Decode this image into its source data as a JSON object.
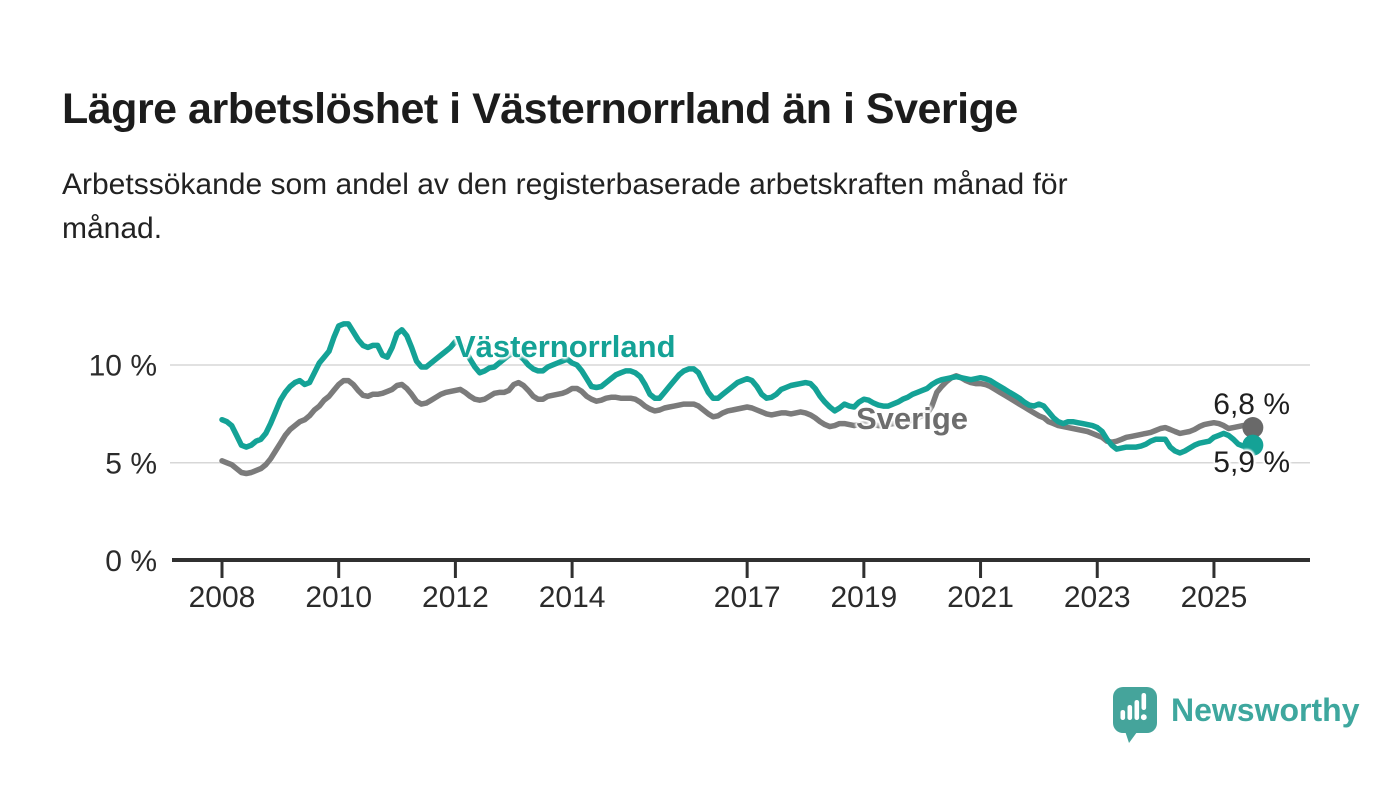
{
  "header": {
    "title": "Lägre arbetslöshet i Västernorrland än i Sverige",
    "subtitle_lines": [
      "Arbetssökande som andel av den registerbaserade arbetskraften månad för",
      "månad."
    ]
  },
  "chart_data": {
    "type": "line",
    "title": "",
    "xlabel": "",
    "ylabel": "",
    "unit": "%",
    "x_monthly_start": "2008-01",
    "x_monthly_end": "2025-09",
    "ylim": [
      0,
      12.8
    ],
    "grid": "horizontal",
    "y_ticks": [
      {
        "value": 0,
        "label": "0 %"
      },
      {
        "value": 5,
        "label": "5 %"
      },
      {
        "value": 10,
        "label": "10 %"
      }
    ],
    "x_ticks": [
      {
        "year": 2008,
        "label": "2008"
      },
      {
        "year": 2010,
        "label": "2010"
      },
      {
        "year": 2012,
        "label": "2012"
      },
      {
        "year": 2014,
        "label": "2014"
      },
      {
        "year": 2017,
        "label": "2017"
      },
      {
        "year": 2019,
        "label": "2019"
      },
      {
        "year": 2021,
        "label": "2021"
      },
      {
        "year": 2023,
        "label": "2023"
      },
      {
        "year": 2025,
        "label": "2025"
      }
    ],
    "series": [
      {
        "name": "Västernorrland",
        "color": "#14a296",
        "dot_color": "#14a296",
        "end_label": "5,9 %",
        "end_value": 5.9,
        "values": [
          7.2,
          7.1,
          6.9,
          6.4,
          5.9,
          5.8,
          5.9,
          6.1,
          6.2,
          6.5,
          7.0,
          7.6,
          8.2,
          8.6,
          8.9,
          9.1,
          9.2,
          9.0,
          9.1,
          9.6,
          10.1,
          10.4,
          10.7,
          11.4,
          12.0,
          12.1,
          12.1,
          11.7,
          11.3,
          11.0,
          10.9,
          11.0,
          11.0,
          10.5,
          10.4,
          10.9,
          11.6,
          11.8,
          11.5,
          10.9,
          10.2,
          9.9,
          9.9,
          10.1,
          10.3,
          10.5,
          10.7,
          10.9,
          11.2,
          11.1,
          10.8,
          10.3,
          9.9,
          9.6,
          9.7,
          9.85,
          9.9,
          10.1,
          10.3,
          10.5,
          10.6,
          10.5,
          10.3,
          10.0,
          9.8,
          9.7,
          9.7,
          9.9,
          10.0,
          10.1,
          10.2,
          10.3,
          10.1,
          10.0,
          9.7,
          9.3,
          8.9,
          8.85,
          8.9,
          9.1,
          9.3,
          9.5,
          9.6,
          9.7,
          9.7,
          9.6,
          9.4,
          9.0,
          8.5,
          8.3,
          8.3,
          8.6,
          8.9,
          9.2,
          9.5,
          9.7,
          9.8,
          9.8,
          9.6,
          9.1,
          8.6,
          8.3,
          8.3,
          8.5,
          8.7,
          8.9,
          9.1,
          9.2,
          9.3,
          9.2,
          8.9,
          8.5,
          8.3,
          8.35,
          8.5,
          8.75,
          8.85,
          8.95,
          9.0,
          9.05,
          9.1,
          9.05,
          8.8,
          8.4,
          8.1,
          7.85,
          7.65,
          7.8,
          8.0,
          7.9,
          7.85,
          8.1,
          8.25,
          8.2,
          8.05,
          7.95,
          7.9,
          7.9,
          8.0,
          8.1,
          8.25,
          8.35,
          8.5,
          8.6,
          8.7,
          8.8,
          9.0,
          9.15,
          9.25,
          9.3,
          9.35,
          9.4,
          9.35,
          9.3,
          9.25,
          9.3,
          9.35,
          9.3,
          9.2,
          9.05,
          8.9,
          8.75,
          8.6,
          8.45,
          8.3,
          8.1,
          7.95,
          7.9,
          8.0,
          7.9,
          7.6,
          7.3,
          7.1,
          7.0,
          7.1,
          7.1,
          7.05,
          7.0,
          6.95,
          6.9,
          6.8,
          6.6,
          6.2,
          5.9,
          5.7,
          5.75,
          5.8,
          5.8,
          5.8,
          5.85,
          5.95,
          6.1,
          6.2,
          6.2,
          6.2,
          5.8,
          5.6,
          5.5,
          5.6,
          5.75,
          5.9,
          6.0,
          6.05,
          6.1,
          6.3,
          6.4,
          6.5,
          6.4,
          6.2,
          5.95,
          5.85,
          6.0,
          5.9
        ]
      },
      {
        "name": "Sverige",
        "color": "#7b7b7b",
        "dot_color": "#696969",
        "end_label": "6,8 %",
        "end_value": 6.8,
        "values": [
          5.1,
          5.0,
          4.9,
          4.7,
          4.5,
          4.45,
          4.5,
          4.6,
          4.7,
          4.9,
          5.2,
          5.6,
          6.0,
          6.4,
          6.7,
          6.9,
          7.1,
          7.2,
          7.4,
          7.7,
          7.9,
          8.2,
          8.4,
          8.7,
          9.0,
          9.2,
          9.2,
          9.0,
          8.7,
          8.45,
          8.4,
          8.5,
          8.5,
          8.55,
          8.65,
          8.75,
          8.95,
          9.0,
          8.8,
          8.5,
          8.15,
          8.0,
          8.05,
          8.2,
          8.35,
          8.5,
          8.6,
          8.65,
          8.7,
          8.75,
          8.6,
          8.4,
          8.25,
          8.2,
          8.25,
          8.4,
          8.55,
          8.6,
          8.6,
          8.7,
          9.0,
          9.1,
          8.95,
          8.7,
          8.4,
          8.25,
          8.25,
          8.4,
          8.45,
          8.5,
          8.55,
          8.65,
          8.8,
          8.8,
          8.65,
          8.4,
          8.25,
          8.15,
          8.2,
          8.3,
          8.35,
          8.35,
          8.3,
          8.3,
          8.3,
          8.25,
          8.1,
          7.9,
          7.75,
          7.65,
          7.7,
          7.8,
          7.85,
          7.9,
          7.95,
          8.0,
          8.0,
          8.0,
          7.9,
          7.7,
          7.5,
          7.35,
          7.4,
          7.55,
          7.65,
          7.7,
          7.75,
          7.8,
          7.85,
          7.8,
          7.7,
          7.6,
          7.5,
          7.45,
          7.5,
          7.55,
          7.55,
          7.5,
          7.55,
          7.6,
          7.55,
          7.45,
          7.3,
          7.1,
          6.95,
          6.85,
          6.9,
          7.0,
          7.0,
          6.95,
          6.9,
          6.95,
          7.0,
          7.0,
          6.95,
          6.9,
          6.9,
          6.95,
          7.0,
          7.0,
          7.05,
          7.1,
          7.2,
          7.3,
          7.4,
          7.5,
          7.9,
          8.6,
          8.9,
          9.15,
          9.35,
          9.45,
          9.35,
          9.2,
          9.1,
          9.05,
          9.05,
          9.0,
          8.9,
          8.75,
          8.6,
          8.45,
          8.3,
          8.15,
          8.0,
          7.85,
          7.7,
          7.55,
          7.4,
          7.3,
          7.1,
          7.0,
          6.9,
          6.85,
          6.8,
          6.75,
          6.7,
          6.65,
          6.6,
          6.5,
          6.4,
          6.3,
          6.1,
          6.05,
          6.1,
          6.2,
          6.3,
          6.35,
          6.4,
          6.45,
          6.5,
          6.55,
          6.65,
          6.75,
          6.8,
          6.7,
          6.6,
          6.5,
          6.55,
          6.6,
          6.7,
          6.85,
          6.95,
          7.0,
          7.05,
          7.0,
          6.9,
          6.75,
          6.8,
          6.85,
          6.9,
          6.85,
          6.8
        ]
      }
    ],
    "colors": {
      "vasternorrland": "#14a296",
      "sverige": "#7b7b7b",
      "gridline": "#d7d7d7",
      "axis": "#303030",
      "tick_label": "#2b2b2b"
    }
  },
  "branding": {
    "name": "Newsworthy",
    "color": "#3ea79e",
    "icon": "newsworthy-speech-bubble-chart-icon"
  }
}
